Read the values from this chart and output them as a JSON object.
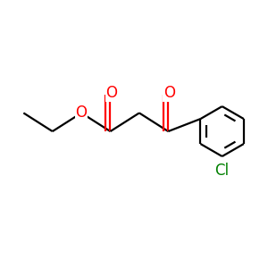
{
  "background_color": "#ffffff",
  "bond_color": "#000000",
  "oxygen_color": "#ff0000",
  "chlorine_color": "#008000",
  "font_size": 12,
  "line_width": 1.6,
  "figsize": [
    3.0,
    3.0
  ],
  "dpi": 100,
  "xlim": [
    0,
    10
  ],
  "ylim": [
    0,
    10
  ]
}
